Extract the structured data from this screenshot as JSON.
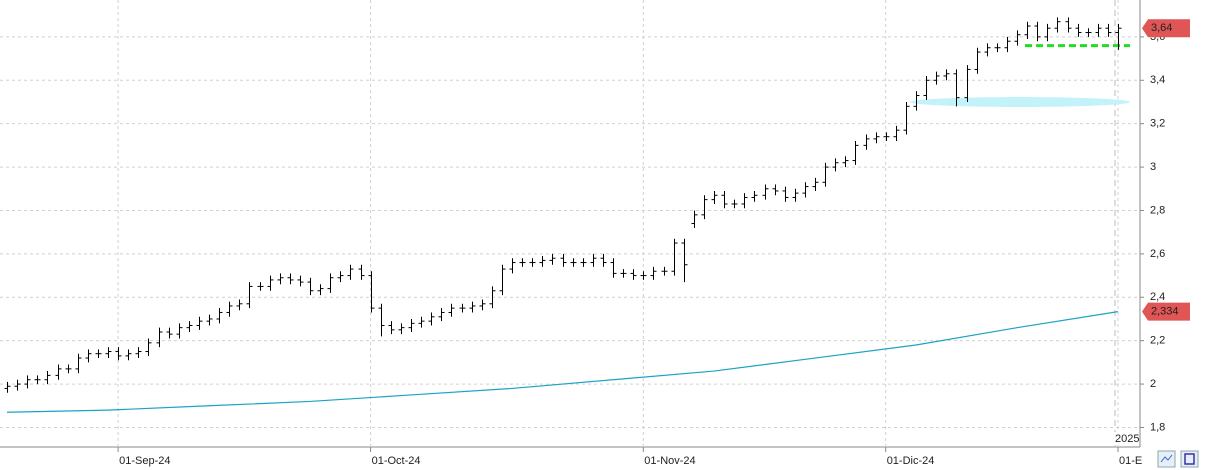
{
  "chart_data": {
    "type": "ohlc",
    "color": "#000000",
    "categories": [
      null,
      null,
      null,
      null,
      null,
      null,
      null,
      null,
      null,
      null,
      null,
      "01-Sep-24",
      null,
      null,
      null,
      null,
      null,
      null,
      null,
      null,
      null,
      null,
      null,
      null,
      null,
      null,
      null,
      null,
      null,
      null,
      null,
      null,
      null,
      null,
      null,
      null,
      "01-Oct-24",
      null,
      null,
      null,
      null,
      null,
      null,
      null,
      null,
      null,
      null,
      null,
      null,
      null,
      null,
      null,
      null,
      null,
      null,
      null,
      null,
      null,
      null,
      null,
      null,
      null,
      null,
      "01-Nov-24",
      null,
      null,
      null,
      null,
      null,
      null,
      null,
      null,
      null,
      null,
      null,
      null,
      null,
      null,
      null,
      null,
      null,
      null,
      null,
      null,
      null,
      null,
      null,
      "01-Dic-24",
      null,
      null,
      null,
      null,
      null,
      null,
      null,
      null,
      null,
      null,
      null,
      null,
      null,
      null,
      null,
      null,
      null,
      null,
      null,
      null,
      null,
      null,
      "01-E"
    ],
    "open": [
      1.98,
      1.99,
      2.0,
      2.02,
      2.02,
      2.04,
      2.07,
      2.07,
      2.12,
      2.14,
      2.14,
      2.15,
      2.13,
      2.14,
      2.15,
      2.19,
      2.24,
      2.23,
      2.26,
      2.27,
      2.29,
      2.3,
      2.33,
      2.36,
      2.37,
      2.45,
      2.45,
      2.48,
      2.49,
      2.48,
      2.47,
      2.43,
      2.44,
      2.49,
      2.5,
      2.53,
      2.5,
      2.35,
      2.27,
      2.25,
      2.26,
      2.28,
      2.29,
      2.31,
      2.33,
      2.35,
      2.35,
      2.36,
      2.37,
      2.43,
      2.53,
      2.56,
      2.56,
      2.56,
      2.57,
      2.58,
      2.56,
      2.56,
      2.56,
      2.58,
      2.56,
      2.51,
      2.51,
      2.5,
      2.5,
      2.52,
      2.52,
      2.65,
      2.74,
      2.78,
      2.85,
      2.87,
      2.83,
      2.83,
      2.86,
      2.87,
      2.9,
      2.89,
      2.86,
      2.88,
      2.91,
      2.93,
      3.0,
      3.02,
      3.03,
      3.1,
      3.13,
      3.14,
      3.14,
      3.17,
      3.28,
      3.33,
      3.4,
      3.42,
      3.43,
      3.32,
      3.45,
      3.53,
      3.55,
      3.55,
      3.58,
      3.61,
      3.65,
      3.6,
      3.64,
      3.67,
      3.64,
      3.62,
      3.62,
      3.64,
      3.62
    ],
    "high": [
      2.01,
      2.02,
      2.04,
      2.04,
      2.06,
      2.09,
      2.09,
      2.14,
      2.16,
      2.16,
      2.17,
      2.17,
      2.16,
      2.17,
      2.21,
      2.26,
      2.26,
      2.28,
      2.29,
      2.31,
      2.32,
      2.35,
      2.38,
      2.39,
      2.47,
      2.47,
      2.5,
      2.51,
      2.51,
      2.5,
      2.49,
      2.46,
      2.51,
      2.52,
      2.55,
      2.55,
      2.52,
      2.37,
      2.29,
      2.28,
      2.3,
      2.31,
      2.33,
      2.35,
      2.37,
      2.37,
      2.38,
      2.39,
      2.45,
      2.55,
      2.58,
      2.58,
      2.58,
      2.59,
      2.6,
      2.6,
      2.58,
      2.58,
      2.6,
      2.6,
      2.58,
      2.53,
      2.53,
      2.52,
      2.54,
      2.54,
      2.67,
      2.67,
      2.8,
      2.87,
      2.89,
      2.89,
      2.85,
      2.88,
      2.89,
      2.92,
      2.92,
      2.91,
      2.9,
      2.93,
      2.95,
      3.02,
      3.04,
      3.05,
      3.12,
      3.15,
      3.16,
      3.16,
      3.19,
      3.3,
      3.35,
      3.42,
      3.44,
      3.45,
      3.45,
      3.47,
      3.55,
      3.57,
      3.57,
      3.6,
      3.63,
      3.67,
      3.67,
      3.66,
      3.69,
      3.69,
      3.66,
      3.64,
      3.66,
      3.66,
      3.66
    ],
    "low": [
      1.96,
      1.97,
      1.98,
      2.0,
      2.0,
      2.02,
      2.05,
      2.05,
      2.1,
      2.12,
      2.12,
      2.11,
      2.11,
      2.12,
      2.13,
      2.17,
      2.21,
      2.21,
      2.24,
      2.25,
      2.27,
      2.28,
      2.31,
      2.34,
      2.35,
      2.43,
      2.43,
      2.46,
      2.46,
      2.45,
      2.41,
      2.41,
      2.42,
      2.47,
      2.48,
      2.48,
      2.33,
      2.22,
      2.23,
      2.23,
      2.24,
      2.26,
      2.27,
      2.29,
      2.31,
      2.33,
      2.33,
      2.34,
      2.35,
      2.41,
      2.51,
      2.54,
      2.54,
      2.54,
      2.55,
      2.54,
      2.54,
      2.54,
      2.54,
      2.54,
      2.49,
      2.49,
      2.48,
      2.48,
      2.48,
      2.5,
      2.5,
      2.47,
      2.72,
      2.76,
      2.83,
      2.81,
      2.81,
      2.81,
      2.84,
      2.85,
      2.87,
      2.84,
      2.84,
      2.86,
      2.89,
      2.91,
      2.98,
      3.0,
      3.01,
      3.08,
      3.11,
      3.12,
      3.12,
      3.15,
      3.26,
      3.31,
      3.38,
      3.4,
      3.28,
      3.3,
      3.43,
      3.51,
      3.53,
      3.53,
      3.56,
      3.59,
      3.58,
      3.58,
      3.62,
      3.62,
      3.6,
      3.6,
      3.6,
      3.6,
      3.54
    ],
    "close": [
      1.99,
      2.0,
      2.02,
      2.02,
      2.04,
      2.07,
      2.07,
      2.12,
      2.14,
      2.14,
      2.15,
      2.13,
      2.14,
      2.15,
      2.19,
      2.24,
      2.23,
      2.26,
      2.27,
      2.29,
      2.3,
      2.33,
      2.36,
      2.37,
      2.45,
      2.45,
      2.48,
      2.49,
      2.48,
      2.47,
      2.43,
      2.44,
      2.49,
      2.5,
      2.53,
      2.5,
      2.35,
      2.27,
      2.25,
      2.26,
      2.28,
      2.29,
      2.31,
      2.33,
      2.35,
      2.35,
      2.36,
      2.37,
      2.43,
      2.53,
      2.56,
      2.56,
      2.56,
      2.57,
      2.58,
      2.56,
      2.56,
      2.56,
      2.58,
      2.56,
      2.51,
      2.51,
      2.5,
      2.5,
      2.52,
      2.52,
      2.65,
      2.55,
      2.78,
      2.85,
      2.87,
      2.83,
      2.83,
      2.86,
      2.87,
      2.9,
      2.89,
      2.86,
      2.88,
      2.91,
      2.93,
      3.0,
      3.02,
      3.03,
      3.1,
      3.13,
      3.14,
      3.14,
      3.17,
      3.28,
      3.33,
      3.4,
      3.42,
      3.43,
      3.32,
      3.45,
      3.53,
      3.55,
      3.55,
      3.58,
      3.61,
      3.65,
      3.6,
      3.64,
      3.67,
      3.64,
      3.62,
      3.62,
      3.64,
      3.62,
      3.64
    ],
    "ma": {
      "color": "#1aa3c4",
      "x": [
        0,
        10,
        20,
        30,
        40,
        50,
        60,
        70,
        80,
        90,
        100,
        110
      ],
      "values": [
        1.87,
        1.88,
        1.9,
        1.92,
        1.95,
        1.98,
        2.02,
        2.06,
        2.12,
        2.18,
        2.26,
        2.334
      ]
    },
    "hlines": [
      {
        "value": 3.56,
        "color": "#22dd22"
      }
    ],
    "zones": [
      {
        "value": 3.3,
        "color": "#c4f2fa"
      }
    ],
    "last_labels": [
      {
        "value": 3.64,
        "label": "3,64",
        "color": "#e05555"
      },
      {
        "value": 2.334,
        "label": "2,334",
        "color": "#e05555"
      }
    ],
    "year_label": "2025",
    "ylim": [
      1.71,
      3.77
    ],
    "yticks": [
      {
        "value": 1.8,
        "label": "1,8"
      },
      2,
      {
        "value": 2.2,
        "label": "2,2"
      },
      {
        "value": 2.4,
        "label": "2,4"
      },
      {
        "value": 2.6,
        "label": "2,6"
      },
      {
        "value": 2.8,
        "label": "2,8"
      },
      3,
      {
        "value": 3.2,
        "label": "3,2"
      },
      {
        "value": 3.4,
        "label": "3,4"
      },
      {
        "value": 3.6,
        "label": "3,6"
      }
    ],
    "grid": true
  }
}
